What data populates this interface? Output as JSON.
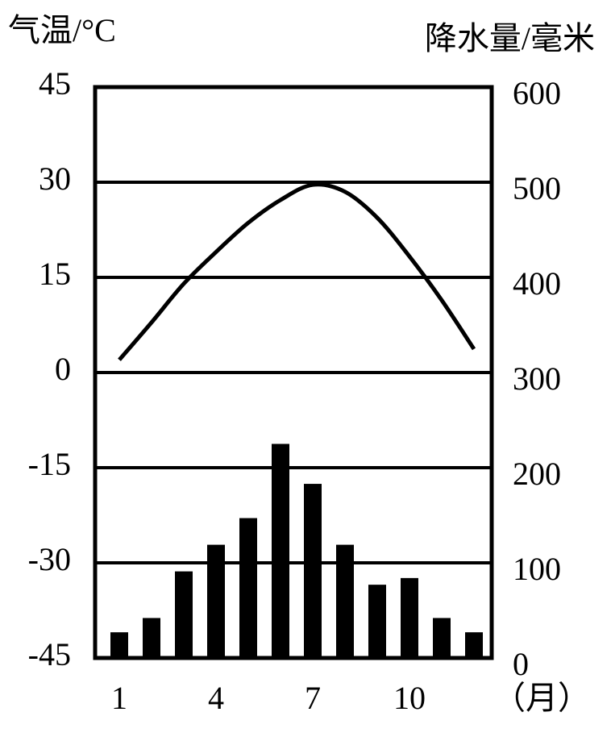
{
  "chart_data": {
    "type": "climate",
    "y_label": "气温/°C",
    "y2_label": "降水量/毫米",
    "x_unit": "（月）",
    "categories": [
      "1",
      null,
      null,
      "4",
      null,
      null,
      "7",
      null,
      null,
      "10",
      null,
      null
    ],
    "series": [
      {
        "name": "气温",
        "type": "line",
        "axis": "y",
        "color": "#000000",
        "values": [
          2,
          7.9,
          14,
          19,
          23.6,
          27.2,
          29.6,
          28.5,
          24.4,
          18.3,
          11.4,
          3.7
        ]
      },
      {
        "name": "降水量",
        "type": "bar",
        "axis": "y2",
        "color": "#000000",
        "values": [
          27,
          42,
          91,
          119,
          147,
          225,
          183,
          119,
          77,
          84,
          42,
          27
        ]
      }
    ],
    "ylim": [
      -45,
      45
    ],
    "yticks": [
      -45,
      -30,
      -15,
      0,
      15,
      30,
      45
    ],
    "y2lim": [
      0,
      600
    ],
    "y2ticks": [
      0,
      100,
      200,
      300,
      400,
      500,
      600
    ],
    "grid": true
  }
}
